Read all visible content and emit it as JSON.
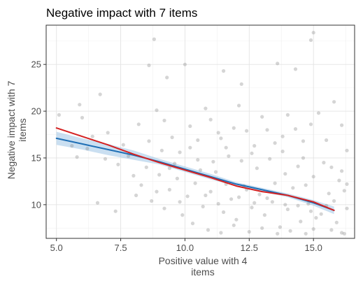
{
  "chart_data": {
    "type": "scatter",
    "title": "Negative impact with 7 items",
    "xlabel_lines": [
      "Positive value with 4",
      "items"
    ],
    "ylabel_lines": [
      "Negative impact with 7",
      "items"
    ],
    "xlim": [
      4.6,
      16.6
    ],
    "ylim": [
      6.4,
      29.2
    ],
    "xticks": [
      5.0,
      7.5,
      10.0,
      12.5,
      15.0
    ],
    "xtick_labels": [
      "5.0",
      "7.5",
      "10.0",
      "12.5",
      "15.0"
    ],
    "yticks": [
      10,
      15,
      20,
      25
    ],
    "ytick_labels": [
      "10",
      "15",
      "20",
      "25"
    ],
    "grid": true,
    "points": {
      "color": "#888888",
      "opacity": 0.35,
      "xy": [
        [
          5.1,
          19.6
        ],
        [
          5.9,
          20.7
        ],
        [
          6.7,
          21.8
        ],
        [
          8.8,
          27.7
        ],
        [
          8.6,
          24.9
        ],
        [
          10.0,
          25.0
        ],
        [
          15.0,
          28.4
        ],
        [
          14.9,
          27.6
        ],
        [
          14.3,
          24.5
        ],
        [
          13.6,
          25.1
        ],
        [
          11.5,
          24.3
        ],
        [
          12.2,
          22.9
        ],
        [
          9.3,
          23.6
        ],
        [
          7.4,
          14.3
        ],
        [
          6.6,
          10.2
        ],
        [
          7.3,
          9.3
        ],
        [
          5.6,
          16.3
        ],
        [
          5.8,
          15.1
        ],
        [
          6.0,
          19.3
        ],
        [
          6.4,
          17.3
        ],
        [
          7.0,
          17.7
        ],
        [
          7.8,
          15.2
        ],
        [
          8.2,
          18.6
        ],
        [
          8.6,
          16.8
        ],
        [
          8.9,
          20.1
        ],
        [
          9.2,
          19.0
        ],
        [
          9.5,
          17.2
        ],
        [
          9.8,
          15.6
        ],
        [
          10.2,
          18.4
        ],
        [
          10.5,
          16.9
        ],
        [
          10.8,
          20.3
        ],
        [
          11.0,
          19.1
        ],
        [
          11.3,
          17.7
        ],
        [
          11.6,
          16.1
        ],
        [
          11.9,
          18.2
        ],
        [
          12.1,
          20.6
        ],
        [
          12.4,
          17.9
        ],
        [
          12.7,
          16.3
        ],
        [
          13.0,
          19.4
        ],
        [
          13.2,
          18.0
        ],
        [
          13.5,
          16.6
        ],
        [
          13.8,
          17.3
        ],
        [
          14.0,
          19.6
        ],
        [
          14.3,
          18.1
        ],
        [
          14.6,
          16.8
        ],
        [
          14.9,
          18.6
        ],
        [
          15.2,
          19.8
        ],
        [
          15.5,
          16.9
        ],
        [
          15.8,
          21.0
        ],
        [
          16.1,
          18.5
        ],
        [
          16.3,
          15.8
        ],
        [
          8.3,
          12.1
        ],
        [
          8.7,
          10.4
        ],
        [
          9.0,
          13.2
        ],
        [
          9.4,
          11.6
        ],
        [
          9.7,
          12.8
        ],
        [
          10.1,
          10.9
        ],
        [
          10.4,
          12.3
        ],
        [
          10.7,
          9.8
        ],
        [
          11.0,
          11.4
        ],
        [
          11.2,
          13.5
        ],
        [
          11.5,
          9.2
        ],
        [
          11.8,
          10.6
        ],
        [
          12.0,
          8.4
        ],
        [
          12.3,
          12.0
        ],
        [
          12.6,
          9.7
        ],
        [
          12.9,
          11.1
        ],
        [
          13.1,
          8.9
        ],
        [
          13.4,
          10.3
        ],
        [
          13.7,
          7.6
        ],
        [
          14.0,
          9.5
        ],
        [
          14.2,
          11.8
        ],
        [
          14.5,
          8.2
        ],
        [
          14.8,
          10.1
        ],
        [
          15.0,
          7.4
        ],
        [
          15.3,
          9.0
        ],
        [
          15.6,
          11.2
        ],
        [
          15.9,
          8.1
        ],
        [
          16.1,
          7.0
        ],
        [
          16.3,
          9.6
        ],
        [
          9.9,
          8.9
        ],
        [
          10.3,
          8.0
        ],
        [
          10.9,
          7.3
        ],
        [
          11.4,
          7.0
        ],
        [
          11.9,
          7.8
        ],
        [
          12.5,
          7.1
        ],
        [
          13.0,
          7.5
        ],
        [
          13.6,
          6.9
        ],
        [
          14.1,
          7.2
        ],
        [
          14.7,
          6.9
        ],
        [
          15.1,
          8.6
        ],
        [
          15.7,
          7.3
        ],
        [
          16.2,
          6.9
        ],
        [
          12.2,
          14.7
        ],
        [
          12.8,
          13.9
        ],
        [
          13.3,
          14.9
        ],
        [
          13.9,
          13.3
        ],
        [
          14.4,
          14.1
        ],
        [
          15.0,
          13.0
        ],
        [
          15.4,
          14.5
        ],
        [
          16.0,
          12.6
        ],
        [
          16.2,
          11.5
        ],
        [
          11.7,
          15.2
        ],
        [
          11.1,
          14.6
        ],
        [
          10.6,
          13.7
        ],
        [
          9.6,
          14.4
        ],
        [
          9.1,
          15.8
        ],
        [
          8.5,
          14.0
        ],
        [
          8.0,
          13.1
        ],
        [
          7.6,
          16.4
        ],
        [
          6.9,
          14.9
        ],
        [
          6.2,
          16.0
        ],
        [
          10.2,
          16.1
        ],
        [
          11.4,
          17.1
        ],
        [
          12.6,
          15.5
        ],
        [
          13.8,
          15.7
        ],
        [
          14.6,
          15.0
        ],
        [
          15.7,
          14.0
        ],
        [
          12.1,
          10.8
        ],
        [
          12.7,
          10.2
        ],
        [
          13.2,
          10.7
        ],
        [
          13.9,
          10.0
        ],
        [
          14.4,
          9.9
        ],
        [
          14.9,
          9.3
        ],
        [
          15.5,
          9.9
        ],
        [
          11.3,
          10.1
        ],
        [
          10.8,
          11.0
        ],
        [
          9.8,
          10.3
        ],
        [
          9.2,
          9.6
        ],
        [
          8.9,
          11.4
        ],
        [
          12.4,
          11.6
        ],
        [
          13.5,
          12.3
        ],
        [
          14.7,
          12.1
        ],
        [
          15.8,
          10.4
        ],
        [
          16.1,
          13.6
        ],
        [
          16.3,
          12.2
        ],
        [
          11.6,
          12.2
        ],
        [
          10.5,
          14.8
        ],
        [
          9.4,
          13.9
        ],
        [
          8.1,
          11.0
        ]
      ]
    },
    "series": [
      {
        "name": "",
        "color": "#1f6fb5",
        "x": [
          5.0,
          6.0,
          7.0,
          8.0,
          9.0,
          10.0,
          11.0,
          12.0,
          13.0,
          14.0,
          15.0,
          15.8
        ],
        "y": [
          17.1,
          16.5,
          15.9,
          15.3,
          14.6,
          13.8,
          13.0,
          12.2,
          11.6,
          11.0,
          10.2,
          9.4
        ],
        "ci_lower": [
          16.4,
          15.9,
          15.3,
          14.8,
          14.3,
          13.5,
          12.7,
          12.0,
          11.4,
          10.8,
          9.9,
          9.0
        ],
        "ci_upper": [
          17.8,
          17.1,
          16.5,
          15.8,
          14.9,
          14.1,
          13.3,
          12.4,
          11.8,
          11.2,
          10.5,
          9.8
        ],
        "ci_color": "#9ec5e6"
      },
      {
        "name": "",
        "color": "#d42020",
        "x": [
          5.0,
          6.0,
          7.0,
          8.0,
          9.0,
          10.0,
          11.0,
          12.0,
          13.0,
          14.0,
          15.0,
          15.8
        ],
        "y": [
          18.2,
          17.3,
          16.4,
          15.4,
          14.5,
          13.7,
          12.9,
          12.0,
          11.4,
          11.0,
          10.3,
          9.4
        ]
      }
    ]
  }
}
